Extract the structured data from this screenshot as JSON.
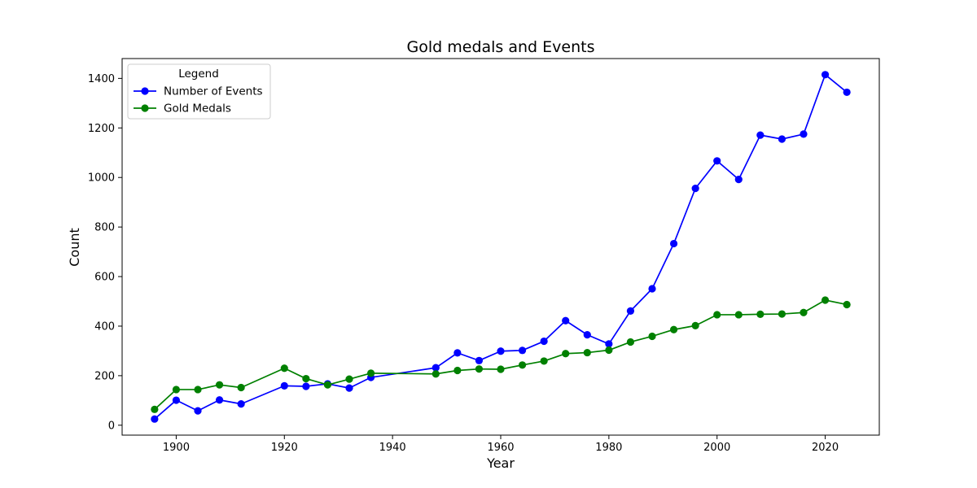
{
  "chart_data": {
    "type": "line",
    "title": "Gold medals and Events",
    "xlabel": "Year",
    "ylabel": "Count",
    "xlim": [
      1890,
      2030
    ],
    "ylim": [
      -40,
      1480
    ],
    "xticks": [
      "1900",
      "1920",
      "1940",
      "1960",
      "1980",
      "2000",
      "2020"
    ],
    "yticks": [
      "0",
      "200",
      "400",
      "600",
      "800",
      "1000",
      "1200",
      "1400"
    ],
    "grid": false,
    "legend": {
      "title": "Legend",
      "position": "top-left"
    },
    "series": [
      {
        "name": "Number of Events",
        "color": "#0000ff",
        "points": [
          {
            "x": 1896,
            "y": 25
          },
          {
            "x": 1900,
            "y": 101
          },
          {
            "x": 1904,
            "y": 58
          },
          {
            "x": 1908,
            "y": 102
          },
          {
            "x": 1912,
            "y": 86
          },
          {
            "x": 1920,
            "y": 159
          },
          {
            "x": 1924,
            "y": 157
          },
          {
            "x": 1928,
            "y": 167
          },
          {
            "x": 1932,
            "y": 150
          },
          {
            "x": 1936,
            "y": 193
          },
          {
            "x": 1948,
            "y": 232
          },
          {
            "x": 1952,
            "y": 292
          },
          {
            "x": 1956,
            "y": 261
          },
          {
            "x": 1960,
            "y": 299
          },
          {
            "x": 1964,
            "y": 302
          },
          {
            "x": 1968,
            "y": 339
          },
          {
            "x": 1972,
            "y": 422
          },
          {
            "x": 1976,
            "y": 365
          },
          {
            "x": 1980,
            "y": 328
          },
          {
            "x": 1984,
            "y": 461
          },
          {
            "x": 1988,
            "y": 551
          },
          {
            "x": 1992,
            "y": 733
          },
          {
            "x": 1996,
            "y": 956
          },
          {
            "x": 2000,
            "y": 1067
          },
          {
            "x": 2004,
            "y": 992
          },
          {
            "x": 2008,
            "y": 1171
          },
          {
            "x": 2012,
            "y": 1155
          },
          {
            "x": 2016,
            "y": 1175
          },
          {
            "x": 2020,
            "y": 1415
          },
          {
            "x": 2024,
            "y": 1344
          }
        ]
      },
      {
        "name": "Gold Medals",
        "color": "#008000",
        "points": [
          {
            "x": 1896,
            "y": 64
          },
          {
            "x": 1900,
            "y": 144
          },
          {
            "x": 1904,
            "y": 144
          },
          {
            "x": 1908,
            "y": 163
          },
          {
            "x": 1912,
            "y": 152
          },
          {
            "x": 1920,
            "y": 230
          },
          {
            "x": 1924,
            "y": 188
          },
          {
            "x": 1928,
            "y": 163
          },
          {
            "x": 1932,
            "y": 186
          },
          {
            "x": 1936,
            "y": 210
          },
          {
            "x": 1948,
            "y": 207
          },
          {
            "x": 1952,
            "y": 221
          },
          {
            "x": 1956,
            "y": 227
          },
          {
            "x": 1960,
            "y": 226
          },
          {
            "x": 1964,
            "y": 243
          },
          {
            "x": 1968,
            "y": 259
          },
          {
            "x": 1972,
            "y": 289
          },
          {
            "x": 1976,
            "y": 293
          },
          {
            "x": 1980,
            "y": 303
          },
          {
            "x": 1984,
            "y": 336
          },
          {
            "x": 1988,
            "y": 359
          },
          {
            "x": 1992,
            "y": 386
          },
          {
            "x": 1996,
            "y": 402
          },
          {
            "x": 2000,
            "y": 446
          },
          {
            "x": 2004,
            "y": 446
          },
          {
            "x": 2008,
            "y": 448
          },
          {
            "x": 2012,
            "y": 449
          },
          {
            "x": 2016,
            "y": 455
          },
          {
            "x": 2020,
            "y": 505
          },
          {
            "x": 2024,
            "y": 487
          }
        ]
      }
    ]
  }
}
